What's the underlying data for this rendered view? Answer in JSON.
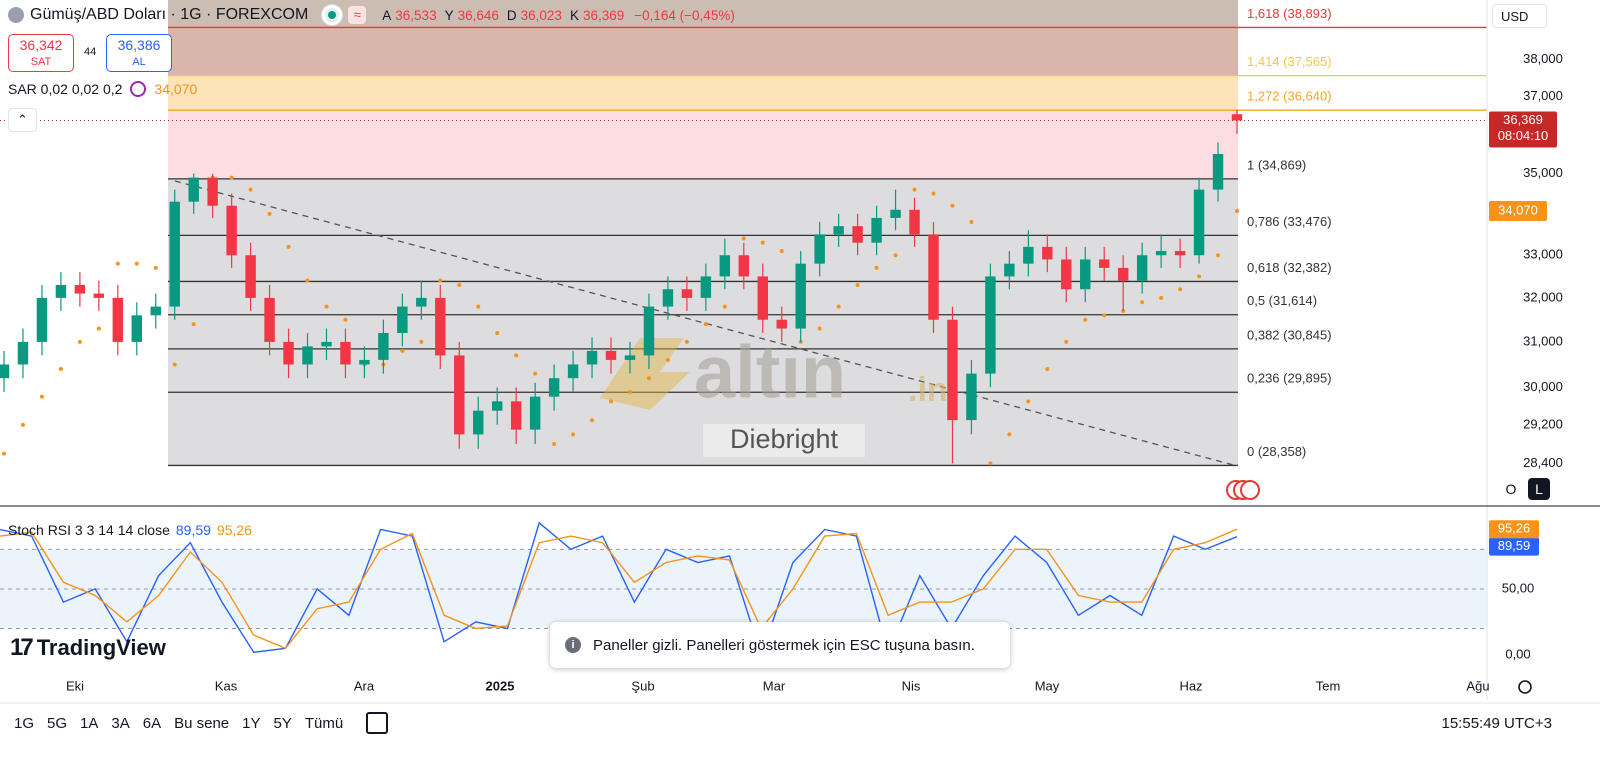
{
  "chart_data": [
    {
      "type": "candlestick",
      "title": "Gümüş/ABD Doları · 1G · FOREXCOM",
      "x_labels": [
        "Eki",
        "Kas",
        "Ara",
        "2025",
        "Şub",
        "Mar",
        "Nis",
        "May",
        "Haz",
        "Tem",
        "Ağu"
      ],
      "open": [
        30.2,
        30.5,
        31.0,
        32.0,
        32.3,
        32.1,
        32.0,
        31.0,
        31.6,
        31.8,
        34.3,
        34.9,
        34.2,
        33.0,
        32.0,
        31.0,
        30.5,
        30.9,
        31.0,
        30.5,
        30.6,
        31.2,
        31.8,
        32.0,
        30.7,
        29.0,
        29.5,
        29.7,
        29.1,
        29.8,
        30.2,
        30.5,
        30.8,
        30.6,
        30.7,
        31.8,
        32.2,
        32.0,
        32.5,
        33.0,
        32.5,
        31.5,
        31.3,
        32.8,
        33.5,
        33.7,
        33.3,
        33.9,
        34.1,
        33.5,
        31.5,
        29.3,
        30.3,
        32.5,
        32.8,
        33.2,
        32.9,
        32.2,
        32.9,
        32.7,
        32.4,
        33.0,
        33.1,
        33.0,
        34.6,
        36.533
      ],
      "high": [
        30.8,
        31.3,
        32.3,
        32.6,
        32.6,
        32.4,
        32.3,
        31.9,
        32.1,
        34.6,
        35.0,
        35.0,
        34.5,
        33.3,
        32.3,
        31.3,
        31.2,
        31.3,
        31.3,
        30.9,
        31.5,
        32.1,
        32.4,
        32.3,
        31.0,
        29.8,
        30.0,
        30.0,
        30.1,
        30.5,
        30.8,
        31.1,
        31.1,
        31.0,
        32.1,
        32.5,
        32.5,
        32.8,
        33.4,
        33.3,
        32.8,
        31.8,
        33.1,
        33.8,
        34.0,
        34.0,
        34.2,
        34.6,
        34.4,
        33.8,
        31.8,
        30.6,
        32.8,
        33.1,
        33.6,
        33.5,
        33.2,
        33.2,
        33.2,
        33.0,
        33.3,
        33.5,
        33.4,
        34.9,
        35.8,
        36.646
      ],
      "low": [
        29.9,
        30.2,
        30.7,
        31.7,
        31.8,
        31.7,
        30.7,
        30.7,
        31.3,
        31.5,
        34.0,
        33.9,
        32.7,
        31.7,
        30.7,
        30.2,
        30.2,
        30.6,
        30.2,
        30.2,
        30.3,
        30.9,
        31.5,
        30.4,
        28.7,
        28.7,
        29.2,
        28.8,
        28.8,
        29.5,
        29.9,
        30.2,
        30.3,
        30.3,
        30.4,
        31.5,
        31.7,
        31.7,
        32.2,
        32.2,
        31.2,
        31.0,
        31.0,
        32.5,
        33.2,
        33.0,
        33.0,
        33.6,
        33.2,
        31.2,
        28.4,
        29.0,
        30.0,
        32.2,
        32.5,
        32.6,
        31.9,
        31.9,
        32.4,
        31.7,
        32.1,
        32.7,
        32.7,
        32.8,
        34.3,
        36.023
      ],
      "close": [
        30.5,
        31.0,
        32.0,
        32.3,
        32.1,
        32.0,
        31.0,
        31.6,
        31.8,
        34.3,
        34.9,
        34.2,
        33.0,
        32.0,
        31.0,
        30.5,
        30.9,
        31.0,
        30.5,
        30.6,
        31.2,
        31.8,
        32.0,
        30.7,
        29.0,
        29.5,
        29.7,
        29.1,
        29.8,
        30.2,
        30.5,
        30.8,
        30.6,
        30.7,
        31.8,
        32.2,
        32.0,
        32.5,
        33.0,
        32.5,
        31.5,
        31.3,
        32.8,
        33.5,
        33.7,
        33.3,
        33.9,
        34.1,
        33.5,
        31.5,
        29.3,
        30.3,
        32.5,
        32.8,
        33.2,
        32.9,
        32.2,
        32.9,
        32.7,
        32.4,
        33.0,
        33.1,
        33.0,
        34.6,
        35.5,
        36.369
      ],
      "up_color": "#089981",
      "down_color": "#f23645",
      "ylim": [
        27.56,
        39.67
      ],
      "log": true,
      "grid": false,
      "yticks": [
        {
          "value": 38,
          "label": "38,000"
        },
        {
          "value": 37,
          "label": "37,000"
        },
        {
          "value": 35,
          "label": "35,000"
        },
        {
          "value": 33,
          "label": "33,000"
        },
        {
          "value": 32,
          "label": "32,000"
        },
        {
          "value": 31,
          "label": "31,000"
        },
        {
          "value": 30,
          "label": "30,000"
        },
        {
          "value": 29.2,
          "label": "29,200"
        },
        {
          "value": 28.4,
          "label": "28,400"
        }
      ],
      "last_price": {
        "value": 36.369,
        "label": "36,369",
        "countdown": "08:04:10",
        "color": "#c62828"
      },
      "sar": {
        "name": "SAR 0,02 0,02 0,2",
        "color": "#f7931a",
        "last_label": "34,070",
        "values": [
          28.6,
          29.2,
          29.8,
          30.4,
          31.0,
          31.3,
          32.8,
          32.8,
          32.7,
          30.5,
          31.4,
          34.9,
          34.9,
          34.6,
          34.0,
          33.2,
          32.4,
          31.8,
          31.5,
          30.5,
          30.5,
          30.8,
          31.0,
          32.4,
          32.3,
          31.8,
          31.2,
          30.7,
          30.3,
          28.8,
          29.0,
          29.3,
          29.7,
          29.9,
          30.2,
          30.6,
          31.0,
          31.4,
          31.8,
          33.4,
          33.3,
          33.1,
          31.0,
          31.3,
          31.8,
          32.3,
          32.7,
          33.0,
          34.6,
          34.5,
          34.2,
          33.8,
          28.4,
          29.0,
          29.7,
          30.4,
          31.0,
          31.5,
          31.6,
          31.7,
          31.9,
          32.0,
          32.2,
          32.5,
          33.0,
          34.07
        ]
      },
      "fib_top_fill": "#cbbdb2",
      "fib_levels": [
        {
          "label": "1,618 (38,893)",
          "price": 38.893,
          "color": "#e53935",
          "fill": "#d9b6ab"
        },
        {
          "label": "1,414 (37,565)",
          "price": 37.565,
          "color": "#f2c94c",
          "fill": "#fde3b8"
        },
        {
          "label": "1,272 (36,640)",
          "price": 36.64,
          "color": "#f5a623",
          "fill": "#fddde2"
        },
        {
          "label": "1 (34,869)",
          "price": 34.869,
          "color": "#333333",
          "fill": "#dddddf"
        },
        {
          "label": "0,786 (33,476)",
          "price": 33.476,
          "color": "#333333",
          "fill": "#dddddf"
        },
        {
          "label": "0,618 (32,382)",
          "price": 32.382,
          "color": "#333333",
          "fill": "#dddddf"
        },
        {
          "label": "0,5 (31,614)",
          "price": 31.614,
          "color": "#333333",
          "fill": "#dddddf"
        },
        {
          "label": "0,382 (30,845)",
          "price": 30.845,
          "color": "#333333",
          "fill": "#dddddf"
        },
        {
          "label": "0,236 (29,895)",
          "price": 29.895,
          "color": "#333333",
          "fill": "#dddddf"
        },
        {
          "label": "0 (28,358)",
          "price": 28.358,
          "color": "#333333"
        }
      ]
    },
    {
      "type": "line",
      "title": "Stoch RSI 3 3 14 14 close",
      "ylim": [
        -11.4,
        109.8
      ],
      "yticks": [
        {
          "value": 50,
          "label": "50,00"
        },
        {
          "value": 0,
          "label": "0,00"
        }
      ],
      "band": [
        20,
        80
      ],
      "band_color": "#e3eef9",
      "levels": [
        80,
        50,
        20
      ],
      "series": [
        {
          "color": "#2962ff",
          "last_label": "89,59",
          "values": [
            95,
            90,
            40,
            50,
            10,
            60,
            85,
            40,
            2,
            5,
            50,
            30,
            95,
            90,
            10,
            25,
            20,
            100,
            80,
            90,
            40,
            80,
            70,
            75,
            0,
            70,
            95,
            90,
            2,
            60,
            20,
            60,
            90,
            70,
            30,
            45,
            30,
            90,
            80,
            89.59
          ]
        },
        {
          "color": "#f7931a",
          "last_label": "95,26",
          "values": [
            90,
            93,
            55,
            45,
            25,
            45,
            78,
            55,
            15,
            5,
            35,
            40,
            80,
            92,
            30,
            20,
            22,
            85,
            90,
            85,
            55,
            70,
            75,
            72,
            20,
            50,
            90,
            92,
            30,
            40,
            40,
            50,
            80,
            80,
            45,
            40,
            40,
            80,
            85,
            95.26
          ]
        }
      ]
    }
  ],
  "ui": {
    "ohlc": [
      {
        "key": "A",
        "value": "36,533"
      },
      {
        "key": "Y",
        "value": "36,646"
      },
      {
        "key": "D",
        "value": "36,023"
      },
      {
        "key": "K",
        "value": "36,369"
      }
    ],
    "change": "−0,164 (−0,45%)",
    "sell": {
      "price": "36,342",
      "label": "SAT"
    },
    "spread": "44",
    "buy": {
      "price": "36,386",
      "label": "AL"
    },
    "currency": "USD",
    "scale_buttons": [
      "O",
      "L"
    ],
    "watermark": {
      "brand": "altın",
      "suffix": ".in",
      "author": "Diebright"
    },
    "logo": "TradingView",
    "toast": "Paneller gizli. Panelleri göstermek için ESC tuşuna basın.",
    "ranges": [
      "1G",
      "5G",
      "1A",
      "3A",
      "6A",
      "Bu sene",
      "1Y",
      "5Y",
      "Tümü"
    ],
    "clock": "15:55:49 UTC+3"
  }
}
